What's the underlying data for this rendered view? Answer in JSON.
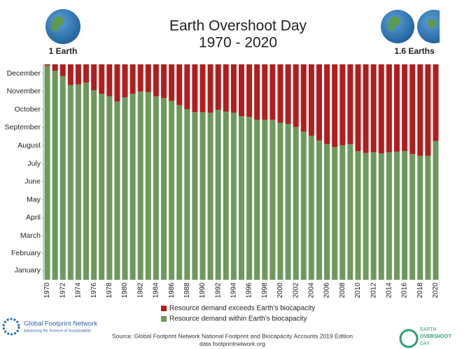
{
  "chart_data": {
    "type": "stacked_bar",
    "title": [
      "Earth Overshoot Day",
      "1970 - 2020"
    ],
    "globe_labels": [
      "1 Earth",
      "1.6 Earths"
    ],
    "categories": [
      "1970",
      null,
      "1972",
      null,
      "1974",
      null,
      "1976",
      null,
      "1978",
      null,
      "1980",
      null,
      "1982",
      null,
      "1984",
      null,
      "1986",
      null,
      "1988",
      null,
      "1990",
      null,
      "1992",
      null,
      "1994",
      null,
      "1996",
      null,
      "1998",
      null,
      "2000",
      null,
      "2002",
      null,
      "2004",
      null,
      "2006",
      null,
      "2008",
      null,
      "2010",
      null,
      "2012",
      null,
      "2014",
      null,
      "2016",
      null,
      "2018",
      null,
      "2020"
    ],
    "series": [
      {
        "name": "Resource demand exceeds Earth’s biocapacity",
        "color": "#b01e1e",
        "values": [
          2,
          11,
          20,
          35,
          34,
          31,
          44,
          50,
          54,
          63,
          56,
          50,
          46,
          47,
          54,
          57,
          62,
          69,
          76,
          81,
          81,
          82,
          77,
          80,
          82,
          88,
          89,
          94,
          94,
          94,
          99,
          101,
          106,
          114,
          121,
          129,
          135,
          140,
          137,
          135,
          147,
          150,
          149,
          151,
          149,
          148,
          147,
          152,
          155,
          155,
          130
        ]
      },
      {
        "name": "Resource demand within Earth’s biocapacity",
        "color": "#6c9a5c",
        "values": [
          363,
          354,
          345,
          330,
          331,
          334,
          321,
          315,
          311,
          302,
          309,
          315,
          319,
          318,
          311,
          308,
          303,
          296,
          289,
          284,
          284,
          283,
          288,
          285,
          283,
          277,
          276,
          271,
          271,
          271,
          266,
          264,
          259,
          251,
          244,
          236,
          230,
          225,
          228,
          230,
          218,
          215,
          216,
          214,
          216,
          217,
          218,
          213,
          210,
          210,
          235
        ]
      }
    ],
    "ylim": [
      0,
      365
    ],
    "yticks": [
      {
        "value": 15.5,
        "label": "January"
      },
      {
        "value": 45,
        "label": "February"
      },
      {
        "value": 74.5,
        "label": "March"
      },
      {
        "value": 105,
        "label": "April"
      },
      {
        "value": 135.5,
        "label": "May"
      },
      {
        "value": 166,
        "label": "June"
      },
      {
        "value": 196.5,
        "label": "July"
      },
      {
        "value": 227.5,
        "label": "August"
      },
      {
        "value": 258,
        "label": "September"
      },
      {
        "value": 288.5,
        "label": "October"
      },
      {
        "value": 319,
        "label": "November"
      },
      {
        "value": 349.5,
        "label": "December"
      }
    ],
    "source": [
      "Source: Global Footprint Network National Footprint and Biocapacity Accounts 2019 Edition",
      "data.footprintnetwork.org"
    ],
    "logo_left": [
      "Global Footprint Network",
      "Advancing the Science of Sustainability"
    ],
    "logo_right": [
      "EARTH",
      "OVERSHOOT",
      "DAY"
    ]
  }
}
